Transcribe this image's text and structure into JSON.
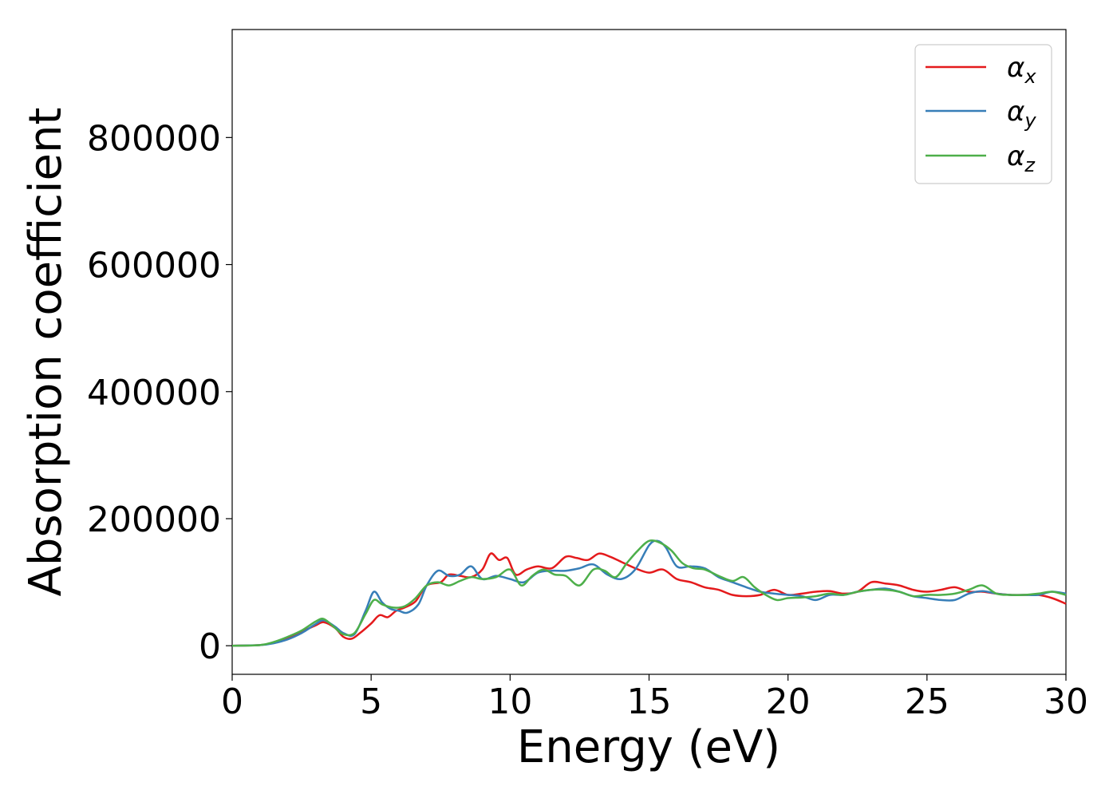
{
  "chart_data": {
    "type": "line",
    "title": "",
    "xlabel": "Energy (eV)",
    "ylabel": "Absorption coefficient",
    "xlim": [
      0,
      30
    ],
    "ylim": [
      -45000,
      970000
    ],
    "xticks": [
      0,
      5,
      10,
      15,
      20,
      25,
      30
    ],
    "xtick_labels": [
      "0",
      "5",
      "10",
      "15",
      "20",
      "25",
      "30"
    ],
    "yticks": [
      0,
      200000,
      400000,
      600000,
      800000
    ],
    "ytick_labels": [
      "0",
      "200000",
      "400000",
      "600000",
      "800000"
    ],
    "grid": false,
    "legend_position": "top-right",
    "series": [
      {
        "name": "αx",
        "base": "α",
        "sub": "x",
        "color": "#e41a1c",
        "x": [
          0,
          1,
          1.5,
          2,
          2.5,
          3,
          3.3,
          3.7,
          4,
          4.3,
          4.6,
          5,
          5.3,
          5.6,
          5.9,
          6.2,
          6.6,
          7,
          7.5,
          7.8,
          8.2,
          8.6,
          9,
          9.3,
          9.6,
          9.9,
          10.2,
          10.6,
          11,
          11.5,
          12,
          12.4,
          12.8,
          13.2,
          13.6,
          14,
          14.5,
          15,
          15.5,
          16,
          16.5,
          17,
          17.5,
          18,
          18.5,
          19,
          19.5,
          20,
          20.5,
          21,
          21.5,
          22,
          22.5,
          23,
          23.5,
          24,
          24.5,
          25,
          25.5,
          26,
          26.5,
          27,
          27.5,
          28,
          28.5,
          29,
          29.5,
          30
        ],
        "y": [
          0,
          1000,
          5000,
          12000,
          22000,
          32000,
          37000,
          28000,
          14000,
          11000,
          20000,
          35000,
          48000,
          45000,
          55000,
          60000,
          70000,
          95000,
          100000,
          112000,
          110000,
          108000,
          120000,
          145000,
          135000,
          138000,
          112000,
          120000,
          125000,
          122000,
          140000,
          138000,
          135000,
          145000,
          140000,
          132000,
          122000,
          115000,
          120000,
          105000,
          100000,
          92000,
          88000,
          80000,
          78000,
          80000,
          88000,
          80000,
          82000,
          85000,
          86000,
          82000,
          85000,
          100000,
          98000,
          95000,
          88000,
          85000,
          88000,
          92000,
          85000,
          85000,
          82000,
          80000,
          80000,
          80000,
          75000,
          66000
        ]
      },
      {
        "name": "αy",
        "base": "α",
        "sub": "y",
        "color": "#377eb8",
        "x": [
          0,
          1,
          1.5,
          2,
          2.5,
          3,
          3.3,
          3.7,
          4,
          4.4,
          4.8,
          5.1,
          5.4,
          5.7,
          6,
          6.3,
          6.7,
          7,
          7.4,
          7.8,
          8.2,
          8.6,
          9,
          9.5,
          10,
          10.5,
          11,
          11.5,
          12,
          12.5,
          13,
          13.5,
          14,
          14.5,
          15,
          15.3,
          15.6,
          16,
          16.5,
          17,
          17.5,
          18,
          18.5,
          19,
          19.5,
          20,
          20.5,
          21,
          21.5,
          22,
          22.5,
          23,
          23.5,
          24,
          24.5,
          25,
          25.5,
          26,
          26.5,
          27,
          27.5,
          28,
          28.5,
          29,
          29.5,
          30
        ],
        "y": [
          0,
          1000,
          4000,
          10000,
          20000,
          34000,
          40000,
          30000,
          20000,
          18000,
          55000,
          85000,
          68000,
          58000,
          55000,
          52000,
          65000,
          95000,
          118000,
          110000,
          112000,
          125000,
          105000,
          110000,
          105000,
          100000,
          115000,
          118000,
          118000,
          122000,
          128000,
          112000,
          105000,
          120000,
          158000,
          165000,
          155000,
          125000,
          125000,
          122000,
          108000,
          100000,
          92000,
          85000,
          82000,
          80000,
          78000,
          72000,
          80000,
          80000,
          85000,
          88000,
          90000,
          85000,
          78000,
          75000,
          72000,
          72000,
          82000,
          86000,
          82000,
          80000,
          80000,
          80000,
          85000,
          82000
        ]
      },
      {
        "name": "αz",
        "base": "α",
        "sub": "z",
        "color": "#4daf4a",
        "x": [
          0,
          1,
          1.5,
          2,
          2.5,
          3,
          3.3,
          3.7,
          4,
          4.4,
          4.8,
          5.1,
          5.4,
          5.8,
          6.2,
          6.6,
          7,
          7.4,
          7.8,
          8.2,
          8.6,
          9,
          9.5,
          10,
          10.4,
          10.8,
          11.2,
          11.6,
          12,
          12.5,
          13,
          13.4,
          13.8,
          14.2,
          14.6,
          15,
          15.4,
          15.8,
          16.2,
          16.6,
          17,
          17.5,
          18,
          18.4,
          18.8,
          19.2,
          19.6,
          20,
          20.5,
          21,
          21.5,
          22,
          22.5,
          23,
          23.5,
          24,
          24.5,
          25,
          25.5,
          26,
          26.5,
          27,
          27.5,
          28,
          28.5,
          29,
          29.5,
          30
        ],
        "y": [
          0,
          1000,
          6000,
          14000,
          24000,
          38000,
          42000,
          28000,
          18000,
          20000,
          50000,
          72000,
          65000,
          60000,
          62000,
          75000,
          95000,
          100000,
          95000,
          102000,
          108000,
          105000,
          108000,
          120000,
          95000,
          110000,
          120000,
          112000,
          110000,
          95000,
          120000,
          118000,
          108000,
          130000,
          150000,
          165000,
          162000,
          150000,
          130000,
          122000,
          120000,
          110000,
          102000,
          108000,
          92000,
          80000,
          72000,
          75000,
          76000,
          78000,
          82000,
          80000,
          85000,
          88000,
          88000,
          85000,
          78000,
          80000,
          80000,
          82000,
          88000,
          95000,
          82000,
          80000,
          80000,
          82000,
          85000,
          80000
        ]
      }
    ]
  }
}
